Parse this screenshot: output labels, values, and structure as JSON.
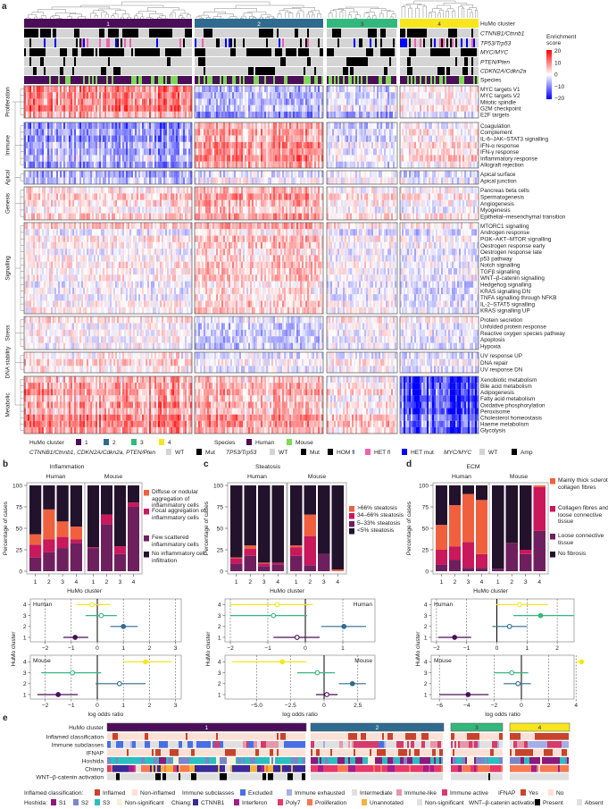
{
  "panel_labels": {
    "a": "a",
    "b": "b",
    "c": "c",
    "d": "d",
    "e": "e"
  },
  "colors": {
    "cluster": {
      "1": "#4a0f58",
      "2": "#2f6b8f",
      "3": "#34b77c",
      "4": "#f7e51e"
    },
    "wt": "#d4d4d4",
    "mut": "#000000",
    "hom_fl": "#000000",
    "het_fl": "#f062b0",
    "het_mut": "#0000ff",
    "human": "#4a0f58",
    "mouse": "#7ed957",
    "enrichment_high": "#ff0000",
    "enrichment_mid": "#ffffff",
    "enrichment_low": "#0000ff",
    "stack": [
      "#f0603f",
      "#c9185b",
      "#6e1f5e",
      "#23122c"
    ]
  },
  "panel_a": {
    "annotation_rows": [
      "HuMo cluster",
      "CTNNB1/Ctnnb1",
      "TP53/Trp53",
      "MYC/MYC",
      "PTEN/Pten",
      "CDKN2A/Cdkn2a",
      "Species"
    ],
    "clusters": [
      "1",
      "2",
      "3",
      "4"
    ],
    "colorbar": {
      "title_line1": "Enrichment",
      "title_line2": "score",
      "ticks": [
        "20",
        "10",
        "0",
        "−10",
        "−20"
      ],
      "range": [
        -20,
        20
      ]
    },
    "groups": [
      {
        "name": "Proliferation",
        "rows": [
          "MYC targets V1",
          "MYC targets V2",
          "Mitotic spindle",
          "G2M checkpoint",
          "E2F targets"
        ]
      },
      {
        "name": "Immune",
        "rows": [
          "Coagulation",
          "Complement",
          "IL-6–JAK–STAT3 signalling",
          "IFN-α response",
          "IFN-γ response",
          "Inflammatory response",
          "Allograft rejection"
        ]
      },
      {
        "name": "Apical",
        "rows": [
          "Apical surface",
          "Apical junction"
        ]
      },
      {
        "name": "Genesis",
        "rows": [
          "Pancreas beta cells",
          "Spermatogenesis",
          "Angiogenesis",
          "Myogenesis",
          "Epithelial–mesenchymal transition"
        ]
      },
      {
        "name": "Signalling",
        "rows": [
          "MTORC1 signalling",
          "Androgen response",
          "PI3K–AKT–MTOR signalling",
          "Oestrogen response early",
          "Oestrogen response late",
          "p53 pathway",
          "Notch signalling",
          "TGFβ signalling",
          "WNT–β-catenin signalling",
          "Hedgehog signalling",
          "KRAS signalling DN",
          "TNFA signalling through NFKB",
          "IL-2–STAT5 signalling",
          "KRAS signalling UP"
        ]
      },
      {
        "name": "Stress",
        "rows": [
          "Protein secretion",
          "Unfolded protein response",
          "Reactive oxygen species pathway",
          "Apoptosis",
          "Hypoxia"
        ]
      },
      {
        "name": "DNA stability",
        "rows": [
          "UV response UP",
          "DNA repair",
          "UV response DN"
        ]
      },
      {
        "name": "Metabolic",
        "rows": [
          "Xenobiotic metabolism",
          "Bile acid metabolism",
          "Adipogenesis",
          "Fatty acid metabolism",
          "Oxidative phosphorylation",
          "Peroxisome",
          "Cholesterol homeostasis",
          "Haeme metabolism",
          "Glycolysis"
        ]
      }
    ],
    "legend": {
      "cluster_title": "HuMo cluster",
      "cluster_items": [
        "1",
        "2",
        "3",
        "4"
      ],
      "species_title": "Species",
      "species_items": [
        "Human",
        "Mouse"
      ],
      "genes_title": "CTNNB1/Ctnnb1, CDKN2A/Cdkn2a, PTEN/Pten",
      "genes_items": [
        "WT",
        "Mut"
      ],
      "tp53_title": "TP53/Trp53",
      "tp53_items": [
        "WT",
        "Mut",
        "HOM fl",
        "HET fl",
        "HET mut"
      ],
      "myc_title": "MYC/MYC",
      "myc_items": [
        "WT",
        "Amp"
      ]
    }
  },
  "chart_data": [
    {
      "panel": "b",
      "type": "bar",
      "stacked": true,
      "title": "Inflammation",
      "xlabel": "HuMo cluster",
      "ylabel": "Percentage of cases",
      "ylim": [
        0,
        100
      ],
      "yticks": [
        0,
        25,
        50,
        75,
        100
      ],
      "facets": [
        "Human",
        "Mouse"
      ],
      "categories": [
        "1",
        "2",
        "3",
        "4"
      ],
      "legend": "right",
      "series": [
        {
          "name": "Diffuse or nodular aggregation of inflammatory cells",
          "values": {
            "Human": [
              12,
              35,
              18,
              15
            ],
            "Mouse": [
              0,
              0,
              0,
              0
            ]
          }
        },
        {
          "name": "Focal aggregation of inflammatory cells",
          "values": {
            "Human": [
              15,
              15,
              13,
              4
            ],
            "Mouse": [
              1,
              11,
              9,
              5
            ]
          }
        },
        {
          "name": "Few scattered inflammatory cells",
          "values": {
            "Human": [
              16,
              22,
              27,
              33
            ],
            "Mouse": [
              27,
              55,
              20,
              75
            ]
          }
        },
        {
          "name": "No inflammatory cell infiltration",
          "values": {
            "Human": [
              57,
              28,
              42,
              48
            ],
            "Mouse": [
              72,
              34,
              71,
              20
            ]
          }
        }
      ]
    },
    {
      "panel": "b",
      "type": "scatter",
      "subtype": "forest",
      "xlabel": "log odds ratio",
      "ylabel": "HuMo cluster",
      "facets": [
        {
          "name": "Human",
          "xlim": [
            -2.5,
            3.2
          ],
          "xticks": [
            -2,
            -1,
            0,
            1,
            2,
            3
          ],
          "tick_labels": [
            "−2",
            "−1",
            "0",
            "1",
            "2",
            "3"
          ],
          "points": [
            {
              "cluster": "1",
              "estimate": -0.85,
              "ci": [
                -1.3,
                -0.35
              ],
              "marker": "filled"
            },
            {
              "cluster": "2",
              "estimate": 1.0,
              "ci": [
                0.5,
                1.55
              ],
              "marker": "filled"
            },
            {
              "cluster": "3",
              "estimate": 0.15,
              "ci": [
                -0.45,
                0.75
              ],
              "marker": "open"
            },
            {
              "cluster": "4",
              "estimate": -0.2,
              "ci": [
                -0.8,
                0.5
              ],
              "marker": "open"
            }
          ]
        },
        {
          "name": "Mouse",
          "xlim": [
            -2.5,
            3.2
          ],
          "xticks": [
            -2,
            -1,
            0,
            1,
            2,
            3
          ],
          "tick_labels": [
            "−2",
            "−1",
            "0",
            "1",
            "2",
            "3"
          ],
          "points": [
            {
              "cluster": "1",
              "estimate": -1.5,
              "ci": [
                -2.3,
                -0.75
              ],
              "marker": "filled"
            },
            {
              "cluster": "2",
              "estimate": 0.85,
              "ci": [
                -0.07,
                1.85
              ],
              "marker": "open"
            },
            {
              "cluster": "3",
              "estimate": -0.95,
              "ci": [
                -2.15,
                0.15
              ],
              "marker": "open"
            },
            {
              "cluster": "4",
              "estimate": 1.85,
              "ci": [
                1.0,
                2.85
              ],
              "marker": "filled"
            }
          ]
        }
      ]
    },
    {
      "panel": "c",
      "type": "bar",
      "stacked": true,
      "title": "Steatosis",
      "xlabel": "HuMo cluster",
      "ylabel": "Percentage of cases",
      "ylim": [
        0,
        100
      ],
      "yticks": [
        0,
        25,
        50,
        75,
        100
      ],
      "facets": [
        "Human",
        "Mouse"
      ],
      "categories": [
        "1",
        "2",
        "3",
        "4"
      ],
      "legend": "right",
      "series": [
        {
          "name": ">66% steatosis",
          "values": {
            "Human": [
              1,
              4,
              1,
              0
            ],
            "Mouse": [
              2,
              25,
              0,
              2
            ]
          }
        },
        {
          "name": "34–66% steatosis",
          "values": {
            "Human": [
              6,
              8,
              3,
              2
            ],
            "Mouse": [
              10,
              34,
              0,
              0
            ]
          }
        },
        {
          "name": "5–33% steatosis",
          "values": {
            "Human": [
              9,
              18,
              6,
              8
            ],
            "Mouse": [
              18,
              7,
              20,
              0
            ]
          }
        },
        {
          "name": "<5% steatosis",
          "values": {
            "Human": [
              84,
              70,
              90,
              90
            ],
            "Mouse": [
              70,
              34,
              80,
              98
            ]
          }
        }
      ]
    },
    {
      "panel": "c",
      "type": "scatter",
      "subtype": "forest",
      "xlabel": "log odds ratio",
      "ylabel": "HuMo cluster",
      "facets": [
        {
          "name": "Human",
          "xlim": [
            -2.05,
            1.7
          ],
          "xticks": [
            -2,
            -1,
            0,
            1
          ],
          "tick_labels": [
            "−2",
            "−1",
            "0",
            "1"
          ],
          "points": [
            {
              "cluster": "1",
              "estimate": -0.22,
              "ci": [
                -0.85,
                0.38
              ],
              "marker": "open"
            },
            {
              "cluster": "2",
              "estimate": 1.03,
              "ci": [
                0.42,
                1.62
              ],
              "marker": "filled"
            },
            {
              "cluster": "3",
              "estimate": -0.85,
              "ci": [
                -2.0,
                0.05
              ],
              "marker": "open"
            },
            {
              "cluster": "4",
              "estimate": -0.75,
              "ci": [
                -2.0,
                0.2
              ],
              "marker": "open"
            }
          ]
        },
        {
          "name": "Mouse",
          "xlim": [
            -7.2,
            3.8
          ],
          "xticks": [
            -5,
            -2.5,
            0,
            2.5
          ],
          "tick_labels": [
            "−5.0",
            "−2.5",
            "0",
            "2.5"
          ],
          "points": [
            {
              "cluster": "1",
              "estimate": 0.2,
              "ci": [
                -0.6,
                1.0
              ],
              "marker": "open"
            },
            {
              "cluster": "2",
              "estimate": 2.1,
              "ci": [
                1.1,
                3.1
              ],
              "marker": "filled"
            },
            {
              "cluster": "3",
              "estimate": -0.5,
              "ci": [
                -2.0,
                0.8
              ],
              "marker": "open"
            },
            {
              "cluster": "4",
              "estimate": -3.1,
              "ci": [
                -6.8,
                -1.3
              ],
              "marker": "filled"
            }
          ]
        }
      ]
    },
    {
      "panel": "d",
      "type": "bar",
      "stacked": true,
      "title": "ECM",
      "xlabel": "HuMo cluster",
      "ylabel": "Percentage of cases",
      "ylim": [
        0,
        100
      ],
      "yticks": [
        0,
        25,
        50,
        75,
        100
      ],
      "facets": [
        "Human",
        "Mouse"
      ],
      "categories": [
        "1",
        "2",
        "3",
        "4"
      ],
      "legend": "right",
      "series": [
        {
          "name": "Mainly thick sclerotic collagen fibres",
          "values": {
            "Human": [
              29,
              48,
              56,
              63
            ],
            "Mouse": [
              0,
              0,
              0,
              2
            ]
          }
        },
        {
          "name": "Collagen fibres and loose connective tissue",
          "values": {
            "Human": [
              17,
              16,
              30,
              16
            ],
            "Mouse": [
              0,
              0,
              5,
              51
            ]
          }
        },
        {
          "name": "Loose connective tissue",
          "values": {
            "Human": [
              8,
              13,
              4,
              4
            ],
            "Mouse": [
              3,
              33,
              20,
              47
            ]
          }
        },
        {
          "name": "No fibrosis",
          "values": {
            "Human": [
              46,
              23,
              10,
              17
            ],
            "Mouse": [
              97,
              67,
              75,
              0
            ]
          }
        }
      ]
    },
    {
      "panel": "d",
      "type": "scatter",
      "subtype": "forest",
      "xlabel": "log odds ratio",
      "ylabel": "HuMo cluster",
      "facets": [
        {
          "name": "Human",
          "xlim": [
            -2.15,
            2.55
          ],
          "xticks": [
            -2,
            -1,
            0,
            1,
            2
          ],
          "tick_labels": [
            "−2",
            "−1",
            "0",
            "1",
            "2"
          ],
          "points": [
            {
              "cluster": "1",
              "estimate": -1.4,
              "ci": [
                -1.95,
                -0.85
              ],
              "marker": "filled"
            },
            {
              "cluster": "2",
              "estimate": 0.42,
              "ci": [
                -0.15,
                1.0
              ],
              "marker": "open"
            },
            {
              "cluster": "3",
              "estimate": 1.45,
              "ci": [
                0.55,
                2.55
              ],
              "marker": "filled"
            },
            {
              "cluster": "4",
              "estimate": 0.75,
              "ci": [
                -0.05,
                1.7
              ],
              "marker": "open"
            }
          ]
        },
        {
          "name": "Mouse",
          "xlim": [
            -6.5,
            4.5
          ],
          "xticks": [
            -6,
            -4,
            -2,
            0,
            2,
            4
          ],
          "tick_labels": [
            "−6",
            "−4",
            "−2",
            "0",
            "2",
            "4"
          ],
          "points": [
            {
              "cluster": "1",
              "estimate": -3.9,
              "ci": [
                -6.0,
                -2.4
              ],
              "marker": "filled"
            },
            {
              "cluster": "2",
              "estimate": -0.25,
              "ci": [
                -1.3,
                0.7
              ],
              "marker": "open"
            },
            {
              "cluster": "3",
              "estimate": -0.7,
              "ci": [
                -2.0,
                0.5
              ],
              "marker": "open"
            },
            {
              "cluster": "4",
              "estimate": 4.4,
              "ci": [
                4.0,
                4.4
              ],
              "marker": "filled"
            }
          ]
        }
      ]
    }
  ],
  "panel_e": {
    "rows": [
      "HuMo cluster",
      "Inflamed classification",
      "Immune subclasses",
      "IFNAP",
      "Hoshida",
      "Chiang",
      "WNT–β-catenin activation"
    ],
    "clusters": [
      "1",
      "2",
      "3",
      "4"
    ],
    "legend_row1": [
      {
        "title": "Inflamed classification:",
        "items": [
          {
            "label": "Inflamed",
            "color": "#c8432b"
          },
          {
            "label": "Non-inflamed",
            "color": "#fde0d5"
          }
        ]
      },
      {
        "title": "Immune subclasses",
        "items": [
          {
            "label": "Excluded",
            "color": "#4a6fe3"
          },
          {
            "label": "Immune exhausted",
            "color": "#a6aee6"
          },
          {
            "label": "Intermediate",
            "color": "#e0e0e0"
          },
          {
            "label": "Immune-like",
            "color": "#e597a8"
          },
          {
            "label": "Immune active",
            "color": "#d63b6a"
          }
        ]
      },
      {
        "title": "IFNAP",
        "items": [
          {
            "label": "Yes",
            "color": "#c8432b"
          },
          {
            "label": "No",
            "color": "#fde0d5"
          }
        ]
      }
    ],
    "legend_row2": [
      {
        "title": "Hoshida:",
        "items": [
          {
            "label": "S1",
            "color": "#8b1a7a"
          },
          {
            "label": "S2",
            "color": "#7b86c9"
          },
          {
            "label": "S3",
            "color": "#2bbfbf"
          },
          {
            "label": "Non-significant",
            "color": "#f6f1d8"
          }
        ]
      },
      {
        "title": "Chiang:",
        "items": [
          {
            "label": "CTNNB1",
            "color": "#3b2a9a"
          },
          {
            "label": "Interferon",
            "color": "#a01f8d"
          },
          {
            "label": "Poly7",
            "color": "#e8396b"
          },
          {
            "label": "Proliferation",
            "color": "#f87850"
          },
          {
            "label": "Unannotated",
            "color": "#f7b23b"
          },
          {
            "label": "Non-significant",
            "color": "#e0e0e0"
          }
        ]
      },
      {
        "title": "WNT–β-catenin activation",
        "items": [
          {
            "label": "Present",
            "color": "#000000"
          },
          {
            "label": "Absent",
            "color": "#e0e0e0"
          }
        ]
      }
    ]
  }
}
